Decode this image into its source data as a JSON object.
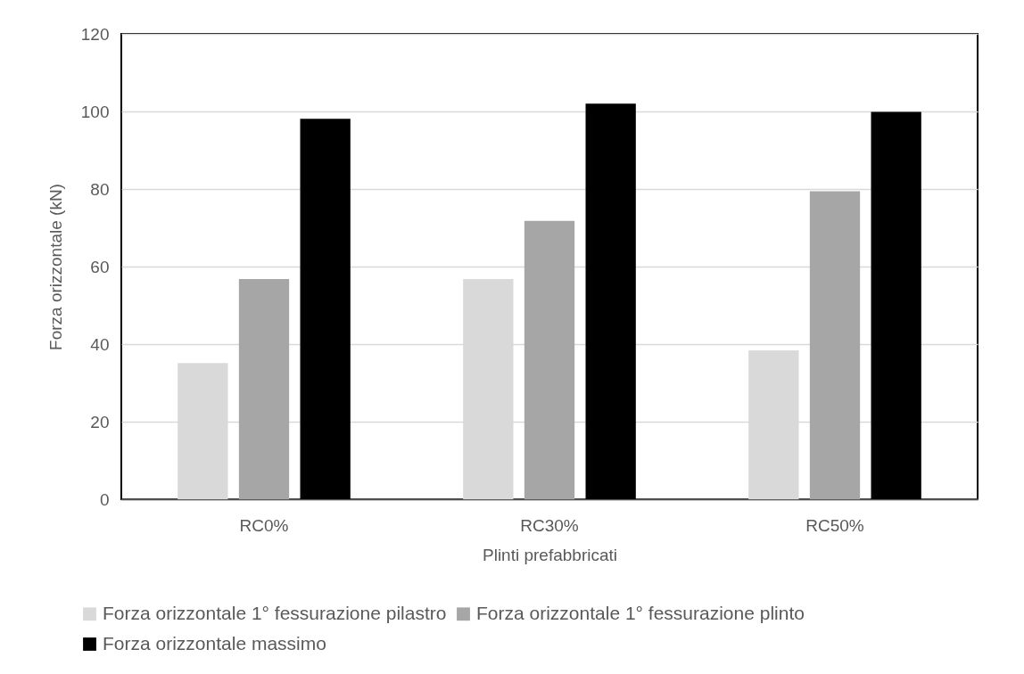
{
  "chart_data": {
    "type": "bar",
    "xlabel": "Plinti prefabbricati",
    "ylabel": "Forza orizzontale (kN)",
    "categories": [
      "RC0%",
      "RC30%",
      "RC50%"
    ],
    "series": [
      {
        "name": "Forza orizzontale 1° fessurazione pilastro",
        "color": "#d9d9d9",
        "values": [
          35.1,
          56.8,
          38.4
        ]
      },
      {
        "name": "Forza orizzontale 1° fessurazione plinto",
        "color": "#a6a6a6",
        "values": [
          56.8,
          71.8,
          79.4
        ]
      },
      {
        "name": "Forza orizzontale massimo",
        "color": "#000000",
        "values": [
          98.1,
          102.0,
          99.9
        ]
      }
    ],
    "ylim": [
      0,
      120
    ],
    "yticks": [
      0,
      20,
      40,
      60,
      80,
      100,
      120
    ],
    "grid": "y",
    "legend": "bottom"
  }
}
